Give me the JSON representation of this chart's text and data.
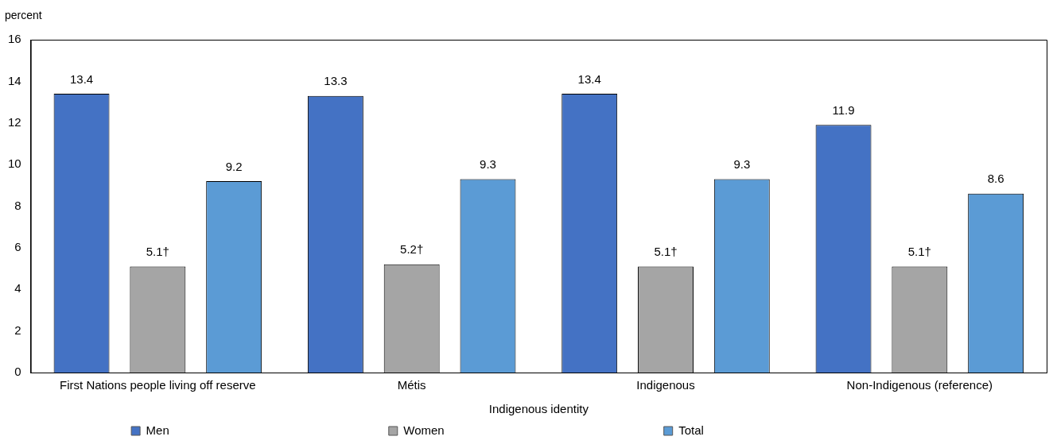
{
  "chart_data": {
    "type": "bar",
    "ylabel": "percent",
    "xlabel": "Indigenous identity",
    "categories": [
      "First Nations people living off reserve",
      "Métis",
      "Indigenous",
      "Non-Indigenous (reference)"
    ],
    "series": [
      {
        "name": "Men",
        "color": "#4472c4",
        "values": [
          13.4,
          13.3,
          13.4,
          11.9
        ],
        "value_labels": [
          "13.4",
          "13.3",
          "13.4",
          "11.9"
        ]
      },
      {
        "name": "Women",
        "color": "#a5a5a5",
        "values": [
          5.1,
          5.2,
          5.1,
          5.1
        ],
        "value_labels": [
          "5.1†",
          "5.2†",
          "5.1†",
          "5.1†"
        ]
      },
      {
        "name": "Total",
        "color": "#5b9bd5",
        "values": [
          9.2,
          9.3,
          9.3,
          8.6
        ],
        "value_labels": [
          "9.2",
          "9.3",
          "9.3",
          "8.6"
        ]
      }
    ],
    "ylim": [
      0,
      16
    ],
    "yticks": [
      0,
      2,
      4,
      6,
      8,
      10,
      12,
      14,
      16
    ],
    "grid": false,
    "legend": "bottom"
  }
}
